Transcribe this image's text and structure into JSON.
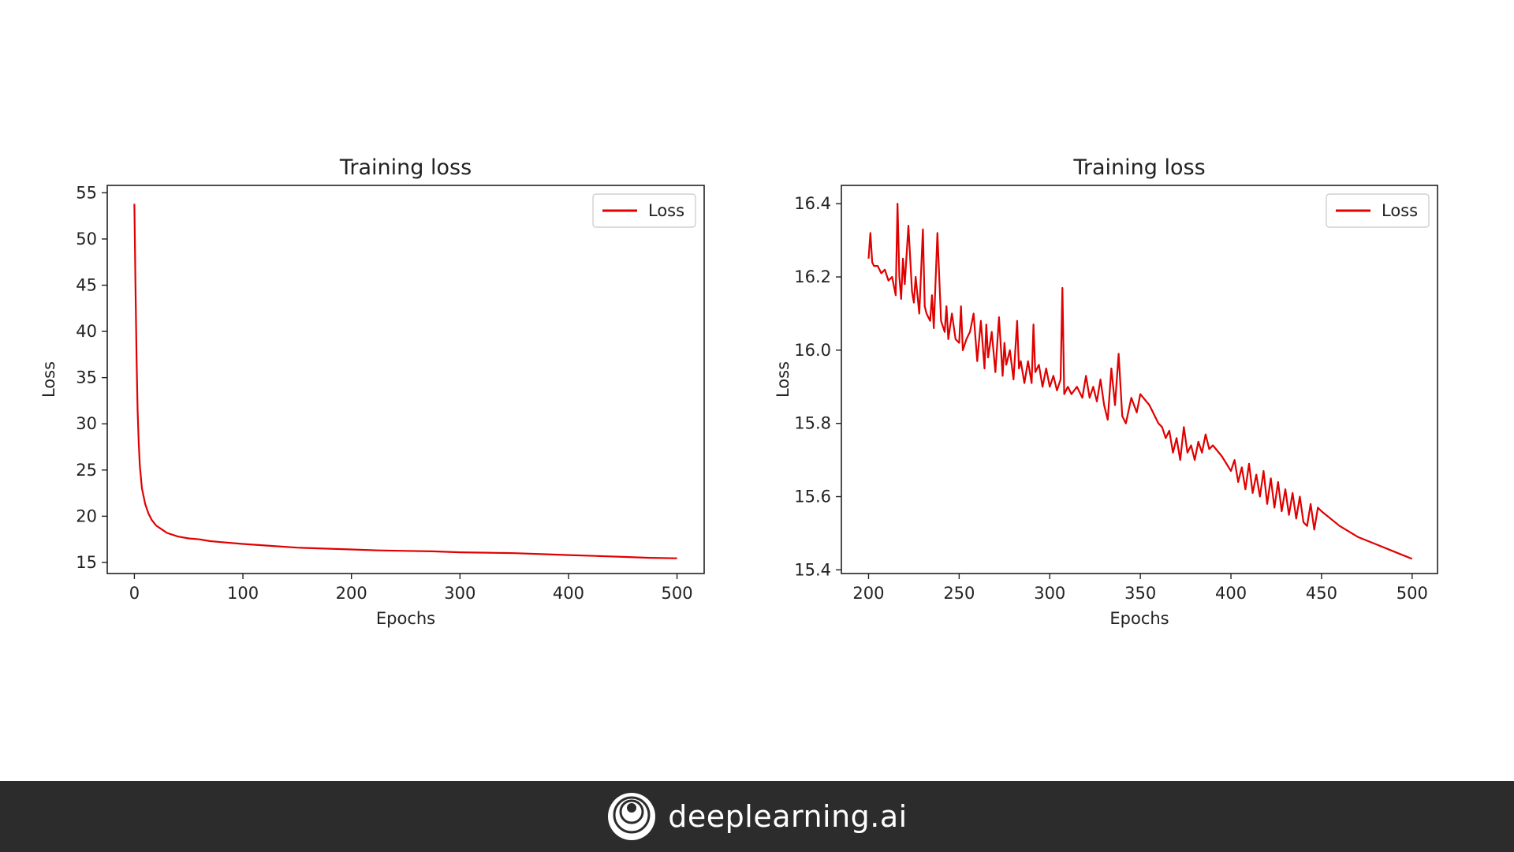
{
  "chart_data": [
    {
      "type": "line",
      "title": "Training loss",
      "xlabel": "Epochs",
      "ylabel": "Loss",
      "xlim": [
        -25,
        525
      ],
      "ylim": [
        13.8,
        55.8
      ],
      "xticks": [
        0,
        100,
        200,
        300,
        400,
        500
      ],
      "yticks": [
        15,
        20,
        25,
        30,
        35,
        40,
        45,
        50,
        55
      ],
      "legend": "top-right",
      "grid": false,
      "series": [
        {
          "name": "Loss",
          "color": "#e00000",
          "x": [
            0,
            1,
            2,
            3,
            4,
            5,
            7,
            10,
            13,
            16,
            20,
            25,
            30,
            40,
            50,
            60,
            70,
            80,
            100,
            125,
            150,
            175,
            200,
            225,
            250,
            275,
            300,
            325,
            350,
            375,
            400,
            425,
            450,
            475,
            500
          ],
          "y": [
            53.8,
            45.0,
            37.0,
            31.5,
            28.0,
            25.5,
            23.0,
            21.3,
            20.3,
            19.6,
            19.0,
            18.6,
            18.2,
            17.8,
            17.6,
            17.5,
            17.3,
            17.2,
            17.0,
            16.8,
            16.6,
            16.5,
            16.4,
            16.3,
            16.25,
            16.2,
            16.1,
            16.05,
            16.0,
            15.9,
            15.8,
            15.7,
            15.6,
            15.5,
            15.45
          ]
        }
      ]
    },
    {
      "type": "line",
      "title": "Training loss",
      "xlabel": "Epochs",
      "ylabel": "Loss",
      "xlim": [
        185,
        514
      ],
      "ylim": [
        15.39,
        16.45
      ],
      "xticks": [
        200,
        250,
        300,
        350,
        400,
        450,
        500
      ],
      "yticks": [
        15.4,
        15.6,
        15.8,
        16.0,
        16.2,
        16.4
      ],
      "ytick_labels": [
        "15.4",
        "15.6",
        "15.8",
        "16.0",
        "16.2",
        "16.4"
      ],
      "legend": "top-right",
      "grid": false,
      "series": [
        {
          "name": "Loss",
          "color": "#e00000",
          "x": [
            200,
            201,
            202,
            203,
            205,
            207,
            209,
            211,
            213,
            215,
            216,
            217,
            218,
            219,
            220,
            222,
            224,
            225,
            226,
            228,
            230,
            231,
            232,
            234,
            235,
            236,
            238,
            240,
            242,
            243,
            244,
            246,
            248,
            250,
            251,
            252,
            254,
            256,
            258,
            260,
            262,
            264,
            265,
            266,
            268,
            270,
            272,
            274,
            275,
            276,
            278,
            280,
            282,
            283,
            284,
            286,
            288,
            290,
            291,
            292,
            294,
            296,
            298,
            300,
            302,
            304,
            306,
            307,
            308,
            310,
            312,
            315,
            318,
            320,
            322,
            324,
            326,
            328,
            330,
            332,
            334,
            336,
            338,
            340,
            342,
            345,
            348,
            350,
            355,
            360,
            362,
            364,
            366,
            368,
            370,
            372,
            374,
            376,
            378,
            380,
            382,
            384,
            386,
            388,
            390,
            395,
            400,
            402,
            404,
            406,
            408,
            410,
            412,
            414,
            416,
            418,
            420,
            422,
            424,
            426,
            428,
            430,
            432,
            434,
            436,
            438,
            440,
            442,
            444,
            446,
            448,
            450,
            460,
            470,
            480,
            490,
            495,
            500
          ],
          "y": [
            16.25,
            16.32,
            16.24,
            16.23,
            16.23,
            16.21,
            16.22,
            16.19,
            16.2,
            16.15,
            16.4,
            16.2,
            16.14,
            16.25,
            16.18,
            16.34,
            16.16,
            16.13,
            16.2,
            16.1,
            16.33,
            16.12,
            16.1,
            16.08,
            16.15,
            16.06,
            16.32,
            16.08,
            16.05,
            16.12,
            16.03,
            16.1,
            16.03,
            16.02,
            16.12,
            16.0,
            16.03,
            16.05,
            16.1,
            15.97,
            16.08,
            15.95,
            16.07,
            15.98,
            16.05,
            15.94,
            16.09,
            15.93,
            16.02,
            15.96,
            16.0,
            15.92,
            16.08,
            15.95,
            15.97,
            15.91,
            15.97,
            15.91,
            16.07,
            15.94,
            15.96,
            15.9,
            15.95,
            15.9,
            15.93,
            15.89,
            15.92,
            16.17,
            15.88,
            15.9,
            15.88,
            15.9,
            15.87,
            15.93,
            15.87,
            15.9,
            15.86,
            15.92,
            15.85,
            15.81,
            15.95,
            15.85,
            15.99,
            15.82,
            15.8,
            15.87,
            15.83,
            15.88,
            15.85,
            15.8,
            15.79,
            15.76,
            15.78,
            15.72,
            15.76,
            15.7,
            15.79,
            15.72,
            15.74,
            15.7,
            15.75,
            15.72,
            15.77,
            15.73,
            15.74,
            15.71,
            15.67,
            15.7,
            15.64,
            15.68,
            15.62,
            15.69,
            15.61,
            15.66,
            15.6,
            15.67,
            15.58,
            15.65,
            15.57,
            15.64,
            15.56,
            15.62,
            15.55,
            15.61,
            15.54,
            15.6,
            15.53,
            15.52,
            15.58,
            15.51,
            15.57,
            15.56,
            15.52,
            15.49,
            15.47,
            15.45,
            15.44,
            15.43
          ]
        }
      ]
    }
  ],
  "footer": {
    "brand_text": "deeplearning.ai",
    "logo_icon": "deeplearning-logo-icon",
    "background": "#2c2c2c"
  }
}
